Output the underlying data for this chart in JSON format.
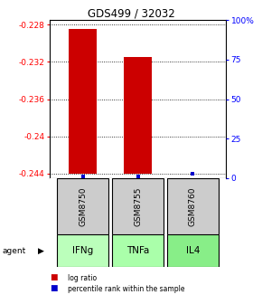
{
  "title": "GDS499 / 32032",
  "bar_positions": [
    0,
    1,
    2
  ],
  "bar_tops": [
    -0.2285,
    -0.2315,
    -0.244
  ],
  "bar_bottom": -0.244,
  "bar_color": "#cc0000",
  "pct_color": "#0000cc",
  "pct_values": [
    1,
    1,
    3
  ],
  "ylim_left": [
    -0.2445,
    -0.2275
  ],
  "yticks_left": [
    -0.244,
    -0.24,
    -0.236,
    -0.232,
    -0.228
  ],
  "ytick_labels_left": [
    "-0.244",
    "-0.24",
    "-0.236",
    "-0.232",
    "-0.228"
  ],
  "ylim_right": [
    0,
    100
  ],
  "yticks_right": [
    0,
    25,
    50,
    75,
    100
  ],
  "ytick_labels_right": [
    "0",
    "25",
    "50",
    "75",
    "100%"
  ],
  "sample_labels": [
    "GSM8750",
    "GSM8755",
    "GSM8760"
  ],
  "agent_labels": [
    "IFNg",
    "TNFa",
    "IL4"
  ],
  "agent_colors": [
    "#aaffaa",
    "#aaffaa",
    "#ccffcc"
  ],
  "sample_bg": "#cccccc",
  "legend_items": [
    "log ratio",
    "percentile rank within the sample"
  ],
  "legend_colors": [
    "#cc0000",
    "#0000cc"
  ],
  "bar_width": 0.5
}
